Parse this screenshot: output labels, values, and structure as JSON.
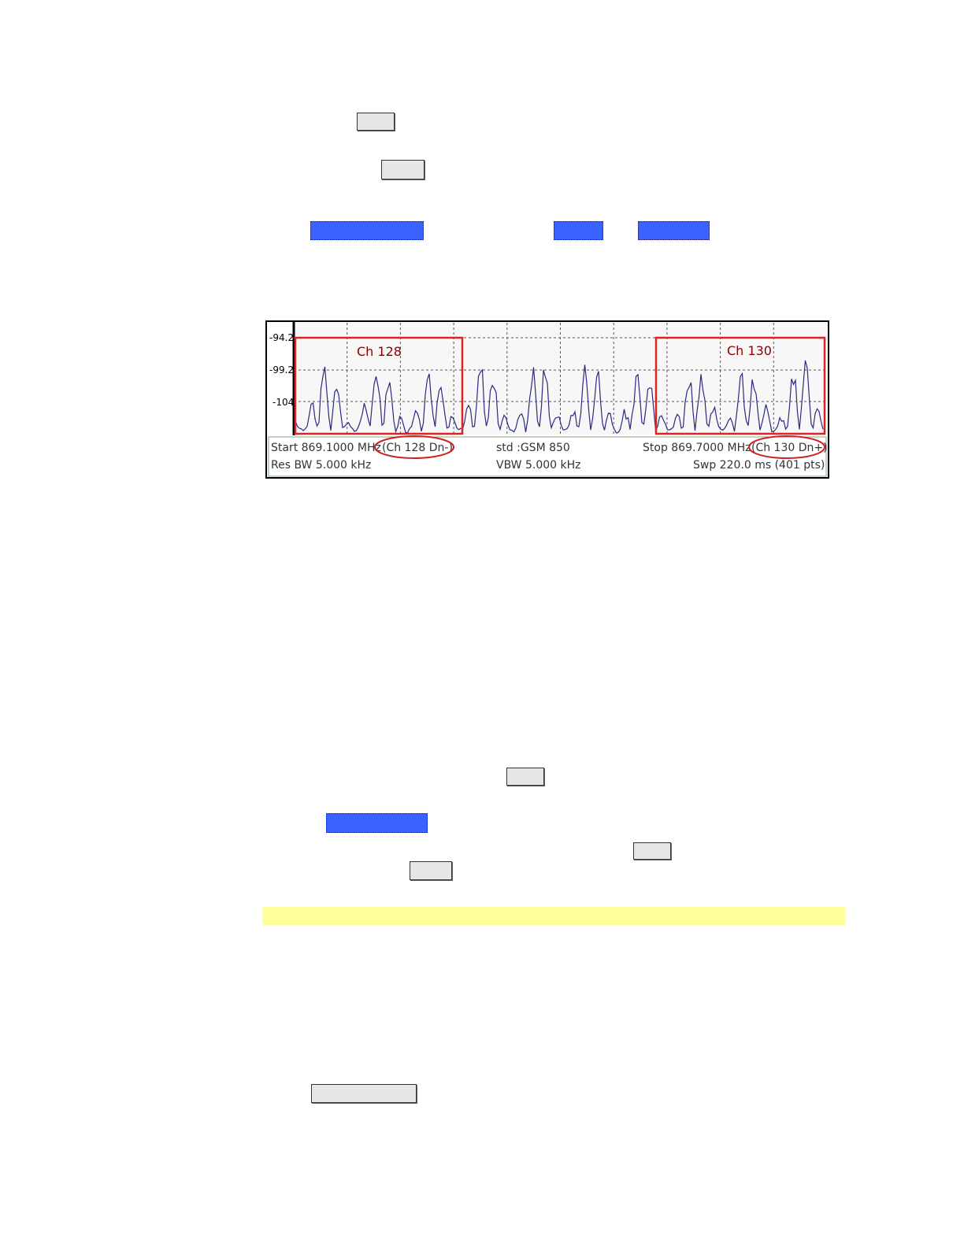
{
  "screenshot": {
    "y_labels": [
      "-94.2",
      "-99.2",
      "-104"
    ],
    "regions": [
      "Ch 128",
      "Ch 130"
    ],
    "status": {
      "start": "Start 869.1000 MHz",
      "start_channel": "(Ch 128 Dn-)",
      "standard": "std :GSM 850",
      "stop": "Stop 869.7000 MHz",
      "stop_channel": "(Ch 130 Dn+)",
      "res_bw": "Res BW 5.000 kHz",
      "vbw": "VBW 5.000 kHz",
      "sweep": "Swp 220.0 ms (401 pts)"
    }
  }
}
